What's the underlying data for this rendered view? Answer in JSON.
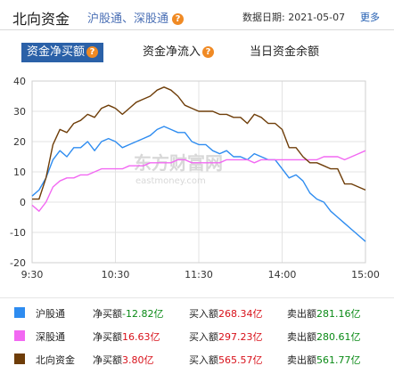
{
  "header": {
    "title": "北向资金",
    "subtitle": "沪股通、深股通",
    "date_label": "数据日期:",
    "date": "2021-05-07",
    "more": "更多"
  },
  "tabs": [
    {
      "label": "资金净买额",
      "active": true,
      "help": "?"
    },
    {
      "label": "资金净流入",
      "active": false,
      "help": "?"
    },
    {
      "label": "当日资金余额",
      "active": false
    }
  ],
  "watermark": {
    "cn": "东方财富网",
    "en": "eastmoney.com"
  },
  "chart_data": {
    "type": "line",
    "xlabel": "",
    "ylabel": "",
    "ylim": [
      -20,
      40
    ],
    "yticks": [
      40,
      30,
      20,
      10,
      0,
      -10,
      -20
    ],
    "xticks": [
      "9:30",
      "10:30",
      "11:30",
      "14:00",
      "15:00"
    ],
    "grid": true,
    "x_minutes": [
      0,
      5,
      10,
      15,
      20,
      25,
      30,
      35,
      40,
      45,
      50,
      55,
      60,
      65,
      70,
      75,
      80,
      85,
      90,
      95,
      100,
      105,
      110,
      115,
      120,
      125,
      130,
      135,
      140,
      145,
      150,
      155,
      160,
      165,
      170,
      175,
      180,
      185,
      190,
      195,
      200,
      205,
      210,
      215,
      220,
      225,
      230,
      235,
      240
    ],
    "series": [
      {
        "name": "沪股通",
        "color": "#2e8cf0",
        "values": [
          2,
          4,
          8,
          14,
          17,
          15,
          18,
          18,
          20,
          17,
          20,
          21,
          20,
          18,
          19,
          20,
          21,
          22,
          24,
          25,
          24,
          23,
          23,
          20,
          19,
          19,
          17,
          16,
          17,
          15,
          15,
          14,
          16,
          15,
          14,
          14,
          11,
          8,
          9,
          7,
          3,
          1,
          0,
          -3,
          -5,
          -7,
          -9,
          -11,
          -13
        ]
      },
      {
        "name": "深股通",
        "color": "#f268f2",
        "values": [
          -1,
          -3,
          0,
          5,
          7,
          8,
          8,
          9,
          9,
          10,
          11,
          11,
          11,
          11,
          12,
          12,
          12,
          13,
          13,
          13,
          13,
          14,
          14,
          13,
          13,
          13,
          13,
          13,
          14,
          14,
          14,
          14,
          13,
          14,
          14,
          14,
          14,
          14,
          14,
          14,
          14,
          14,
          15,
          15,
          15,
          14,
          15,
          16,
          17
        ]
      },
      {
        "name": "北向资金",
        "color": "#6e3d08",
        "values": [
          1,
          1,
          8,
          19,
          24,
          23,
          26,
          27,
          29,
          28,
          31,
          32,
          31,
          29,
          31,
          33,
          34,
          35,
          37,
          38,
          37,
          35,
          32,
          31,
          30,
          30,
          30,
          29,
          29,
          28,
          28,
          26,
          29,
          28,
          26,
          26,
          24,
          18,
          18,
          15,
          13,
          13,
          12,
          11,
          11,
          6,
          6,
          5,
          4
        ]
      }
    ]
  },
  "legend": [
    {
      "name": "沪股通",
      "color": "#2e8cf0",
      "net_label": "净买额",
      "net": "-12.82",
      "buy_label": "买入额",
      "buy": "268.34",
      "sell_label": "卖出额",
      "sell": "281.16",
      "unit": "亿"
    },
    {
      "name": "深股通",
      "color": "#f268f2",
      "net_label": "净买额",
      "net": "16.63",
      "buy_label": "买入额",
      "buy": "297.23",
      "sell_label": "卖出额",
      "sell": "280.61",
      "unit": "亿"
    },
    {
      "name": "北向资金",
      "color": "#6e3d08",
      "net_label": "净买额",
      "net": "3.80",
      "buy_label": "买入额",
      "buy": "565.57",
      "sell_label": "卖出额",
      "sell": "561.77",
      "unit": "亿"
    }
  ]
}
